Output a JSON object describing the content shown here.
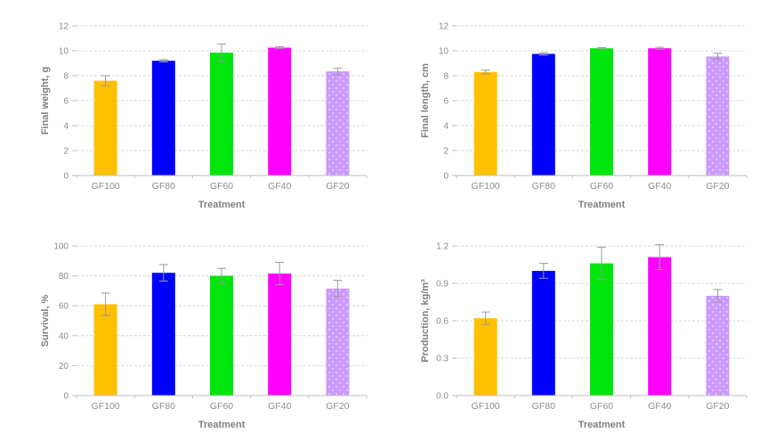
{
  "figure": {
    "background": "#FFFFFF",
    "categories": [
      "GF100",
      "GF80",
      "GF60",
      "GF40",
      "GF20"
    ],
    "xlabel": "Treatment",
    "bar_colors": [
      "#FFC000",
      "#0000FF",
      "#00E60C",
      "#FF00FF",
      "#CC99FF"
    ],
    "pattern_bar_index": 4,
    "pattern_fill": {
      "base": "#CC99FF",
      "dot": "#F2E8FF"
    },
    "error_bar_color": "#999999",
    "gridline_color": "#D6D6D6",
    "axis_line_color": "#BFBFBF",
    "tick_text_color": "#8C8C8C",
    "title_text_color": "#7F7F7F"
  },
  "chart_data": [
    {
      "type": "bar",
      "title": "",
      "ylabel": "Final weight, g",
      "xlabel": "Treatment",
      "categories": [
        "GF100",
        "GF80",
        "GF60",
        "GF40",
        "GF20"
      ],
      "values": [
        7.6,
        9.2,
        9.85,
        10.25,
        8.35
      ],
      "errors": [
        0.4,
        0.1,
        0.7,
        0.08,
        0.25
      ],
      "ylim": [
        0,
        12
      ],
      "yticks": [
        0,
        2,
        4,
        6,
        8,
        10,
        12
      ],
      "ytick_labels": [
        "0",
        "2",
        "4",
        "6",
        "8",
        "10",
        "12"
      ],
      "grid": true,
      "legend": "none"
    },
    {
      "type": "bar",
      "title": "",
      "ylabel": "Final length, cm",
      "xlabel": "Treatment",
      "categories": [
        "GF100",
        "GF80",
        "GF60",
        "GF40",
        "GF20"
      ],
      "values": [
        8.3,
        9.75,
        10.2,
        10.2,
        9.55
      ],
      "errors": [
        0.15,
        0.1,
        0.05,
        0.08,
        0.25
      ],
      "ylim": [
        0,
        12
      ],
      "yticks": [
        0,
        2,
        4,
        6,
        8,
        10,
        12
      ],
      "ytick_labels": [
        "0",
        "2",
        "4",
        "6",
        "8",
        "10",
        "12"
      ],
      "grid": true,
      "legend": "none"
    },
    {
      "type": "bar",
      "title": "",
      "ylabel": "Survival, %",
      "xlabel": "Treatment",
      "categories": [
        "GF100",
        "GF80",
        "GF60",
        "GF40",
        "GF20"
      ],
      "values": [
        61,
        82,
        80,
        81.5,
        71.5
      ],
      "errors": [
        7.5,
        5.5,
        5,
        7.5,
        5.5
      ],
      "ylim": [
        0,
        100
      ],
      "yticks": [
        0,
        20,
        40,
        60,
        80,
        100
      ],
      "ytick_labels": [
        "0",
        "20",
        "40",
        "60",
        "80",
        "100"
      ],
      "grid": true,
      "legend": "none"
    },
    {
      "type": "bar",
      "title": "",
      "ylabel": "Production, kg/m³",
      "xlabel": "Treatment",
      "categories": [
        "GF100",
        "GF80",
        "GF60",
        "GF40",
        "GF20"
      ],
      "values": [
        0.62,
        1.0,
        1.06,
        1.11,
        0.8
      ],
      "errors": [
        0.05,
        0.06,
        0.13,
        0.1,
        0.05
      ],
      "ylim": [
        0,
        1.2
      ],
      "yticks": [
        0,
        0.3,
        0.6,
        0.9,
        1.2
      ],
      "ytick_labels": [
        "0.0",
        "0.3",
        "0.6",
        "0.9",
        "1.2"
      ],
      "grid": true,
      "legend": "none"
    }
  ]
}
